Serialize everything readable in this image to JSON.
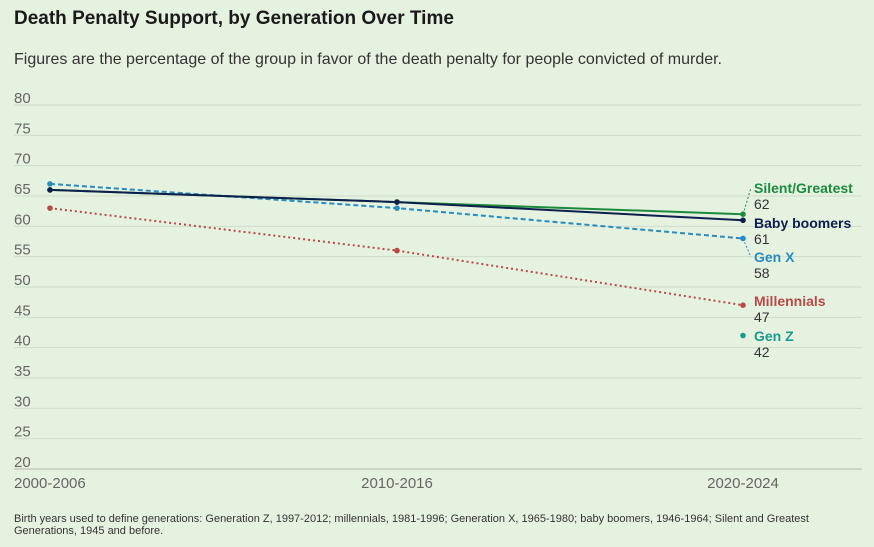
{
  "title": "Death Penalty Support, by Generation Over Time",
  "subtitle": "Figures are the percentage of the group in favor of the death penalty for people convicted of murder.",
  "footnote": "Birth years used to define generations: Generation Z, 1997-2012; millennials, 1981-1996; Generation X, 1965-1980; baby boomers, 1946-1964; Silent and Greatest Generations, 1945 and before.",
  "chart_data": {
    "type": "line",
    "title": "Death Penalty Support, by Generation Over Time",
    "subtitle": "Figures are the percentage of the group in favor of the death penalty for people convicted of murder.",
    "categories": [
      "2000-2006",
      "2010-2016",
      "2020-2024"
    ],
    "ylim": [
      20,
      80
    ],
    "yticks": [
      20,
      25,
      30,
      35,
      40,
      45,
      50,
      55,
      60,
      65,
      70,
      75,
      80
    ],
    "grid": true,
    "legend": "direct labels at line ends (right)",
    "series": [
      {
        "name": "Silent/Greatest",
        "values": [
          66,
          64,
          62
        ],
        "color": "#1e8a3e",
        "dash": "solid",
        "end_label": "62"
      },
      {
        "name": "Baby boomers",
        "values": [
          66,
          64,
          61
        ],
        "color": "#0d1f4c",
        "dash": "solid",
        "end_label": "61"
      },
      {
        "name": "Gen X",
        "values": [
          67,
          63,
          58
        ],
        "color": "#2a8bbf",
        "dash": "dashed",
        "end_label": "58"
      },
      {
        "name": "Millennials",
        "values": [
          63,
          56,
          47
        ],
        "color": "#b54a4a",
        "dash": "dotted",
        "end_label": "47"
      },
      {
        "name": "Gen Z",
        "values": [
          null,
          null,
          42
        ],
        "color": "#1a9a8a",
        "dash": "none",
        "end_label": "42"
      }
    ]
  }
}
